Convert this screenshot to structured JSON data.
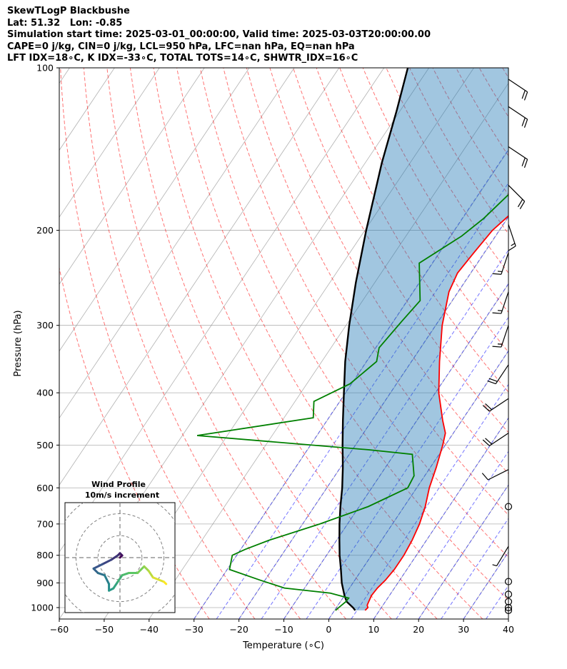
{
  "header": {
    "lines": [
      "SkewTLogP Blackbushe",
      "Lat: 51.32   Lon: -0.85",
      "Simulation start time: 2025-03-01_00:00:00, Valid time: 2025-03-03T20:00:00.00",
      "CAPE=0 j/kg, CIN=0 j/kg, LCL=950 hPa, LFC=nan hPa, EQ=nan hPa",
      "LFT IDX=18∘C, K IDX=-33∘C, TOTAL TOTS=14∘C, SHWTR_IDX=16∘C"
    ]
  },
  "chart_data": {
    "type": "skewt",
    "title": "SkewTLogP Blackbushe",
    "xlabel": "Temperature (∘C)",
    "ylabel": "Pressure (hPa)",
    "xlim": [
      -60,
      40
    ],
    "ylim": [
      1050,
      100
    ],
    "x_ticks": [
      "−60",
      "−50",
      "−40",
      "−30",
      "−20",
      "−10",
      "0",
      "10",
      "20",
      "30",
      "40"
    ],
    "x_tick_values": [
      -60,
      -50,
      -40,
      -30,
      -20,
      -10,
      0,
      10,
      20,
      30,
      40
    ],
    "y_ticks": [
      "1000",
      "900",
      "800",
      "700",
      "600",
      "500",
      "400",
      "300",
      "200",
      "100"
    ],
    "y_tick_values": [
      1000,
      900,
      800,
      700,
      600,
      500,
      400,
      300,
      200,
      100
    ],
    "grid": true,
    "colors": {
      "temperature": "#ff0000",
      "dewpoint": "#008000",
      "parcel": "#000000",
      "cape_fill": "#1f77b4",
      "dry_adiabats": "#ff0000",
      "moist_adiabats": "#0000ff",
      "mixing_ratio": "#808080",
      "isotherms": "#808080"
    },
    "temperature": [
      {
        "p": 1012,
        "x": 6.8
      },
      {
        "p": 1000,
        "x": 7.0
      },
      {
        "p": 990,
        "x": 6.5
      },
      {
        "p": 975,
        "x": 6.3
      },
      {
        "p": 950,
        "x": 6.0
      },
      {
        "p": 920,
        "x": 6.2
      },
      {
        "p": 890,
        "x": 6.8
      },
      {
        "p": 850,
        "x": 7.2
      },
      {
        "p": 800,
        "x": 7.2
      },
      {
        "p": 750,
        "x": 6.8
      },
      {
        "p": 700,
        "x": 6.0
      },
      {
        "p": 650,
        "x": 4.7
      },
      {
        "p": 600,
        "x": 2.8
      },
      {
        "p": 550,
        "x": 1.3
      },
      {
        "p": 500,
        "x": -0.6
      },
      {
        "p": 475,
        "x": -1.8
      },
      {
        "p": 450,
        "x": -4.3
      },
      {
        "p": 400,
        "x": -9.3
      },
      {
        "p": 350,
        "x": -13.8
      },
      {
        "p": 300,
        "x": -18.6
      },
      {
        "p": 260,
        "x": -22.1
      },
      {
        "p": 240,
        "x": -23.0
      },
      {
        "p": 220,
        "x": -22.4
      },
      {
        "p": 200,
        "x": -21.6
      },
      {
        "p": 185,
        "x": -19.8
      },
      {
        "p": 175,
        "x": -17.4
      },
      {
        "p": 160,
        "x": -15.7
      },
      {
        "p": 145,
        "x": -16.2
      },
      {
        "p": 135,
        "x": -15.4
      },
      {
        "p": 125,
        "x": -11.8
      },
      {
        "p": 115,
        "x": -8.4
      },
      {
        "p": 108,
        "x": -7.9
      },
      {
        "p": 100,
        "x": -6.5
      }
    ],
    "dewpoint": [
      {
        "p": 1012,
        "x": 0.2
      },
      {
        "p": 1000,
        "x": 0.5
      },
      {
        "p": 975,
        "x": 1.2
      },
      {
        "p": 960,
        "x": 1.3
      },
      {
        "p": 940,
        "x": -3.5
      },
      {
        "p": 920,
        "x": -14.5
      },
      {
        "p": 890,
        "x": -21.0
      },
      {
        "p": 850,
        "x": -29.5
      },
      {
        "p": 800,
        "x": -31.0
      },
      {
        "p": 780,
        "x": -29.0
      },
      {
        "p": 750,
        "x": -25.0
      },
      {
        "p": 700,
        "x": -16.2
      },
      {
        "p": 650,
        "x": -8.0
      },
      {
        "p": 600,
        "x": -2.0
      },
      {
        "p": 570,
        "x": -2.4
      },
      {
        "p": 520,
        "x": -6.0
      },
      {
        "p": 510,
        "x": -16.5
      },
      {
        "p": 480,
        "x": -56.7
      },
      {
        "p": 445,
        "x": -33.5
      },
      {
        "p": 415,
        "x": -35.8
      },
      {
        "p": 385,
        "x": -30.4
      },
      {
        "p": 350,
        "x": -27.8
      },
      {
        "p": 330,
        "x": -29.3
      },
      {
        "p": 295,
        "x": -28.2
      },
      {
        "p": 270,
        "x": -27.2
      },
      {
        "p": 230,
        "x": -33.0
      },
      {
        "p": 205,
        "x": -27.6
      },
      {
        "p": 190,
        "x": -25.3
      },
      {
        "p": 160,
        "x": -22.0
      },
      {
        "p": 145,
        "x": -22.6
      },
      {
        "p": 135,
        "x": -22.9
      },
      {
        "p": 125,
        "x": -24.5
      },
      {
        "p": 115,
        "x": -22.3
      },
      {
        "p": 100,
        "x": -20.8
      }
    ],
    "parcel": [
      {
        "p": 1012,
        "x": 4.6
      },
      {
        "p": 1000,
        "x": 3.7
      },
      {
        "p": 975,
        "x": 1.4
      },
      {
        "p": 950,
        "x": 0.0
      },
      {
        "p": 900,
        "x": -2.5
      },
      {
        "p": 850,
        "x": -4.7
      },
      {
        "p": 800,
        "x": -7.1
      },
      {
        "p": 750,
        "x": -9.4
      },
      {
        "p": 700,
        "x": -11.8
      },
      {
        "p": 650,
        "x": -14.2
      },
      {
        "p": 600,
        "x": -16.6
      },
      {
        "p": 550,
        "x": -19.5
      },
      {
        "p": 500,
        "x": -22.9
      },
      {
        "p": 450,
        "x": -26.5
      },
      {
        "p": 400,
        "x": -30.4
      },
      {
        "p": 350,
        "x": -34.8
      },
      {
        "p": 300,
        "x": -39.3
      },
      {
        "p": 250,
        "x": -44.2
      },
      {
        "p": 200,
        "x": -49.7
      },
      {
        "p": 150,
        "x": -56.3
      },
      {
        "p": 120,
        "x": -60.8
      },
      {
        "p": 100,
        "x": -64.7
      }
    ],
    "wind_barbs": [
      {
        "p": 1012,
        "u": 0,
        "v": 0
      },
      {
        "p": 1000,
        "u": 0,
        "v": 0
      },
      {
        "p": 975,
        "u": 0,
        "v": 0
      },
      {
        "p": 945,
        "u": 0,
        "v": 0
      },
      {
        "p": 895,
        "u": 0,
        "v": 0
      },
      {
        "p": 770,
        "u": 3,
        "v": 5
      },
      {
        "p": 650,
        "u": 0,
        "v": 0
      },
      {
        "p": 555,
        "u": 10,
        "v": 5
      },
      {
        "p": 475,
        "u": 15,
        "v": 10
      },
      {
        "p": 410,
        "u": 15,
        "v": 10
      },
      {
        "p": 355,
        "u": 10,
        "v": 15
      },
      {
        "p": 300,
        "u": 5,
        "v": 15
      },
      {
        "p": 260,
        "u": 5,
        "v": 15
      },
      {
        "p": 220,
        "u": 5,
        "v": 15
      },
      {
        "p": 195,
        "u": -5,
        "v": 15
      },
      {
        "p": 165,
        "u": -15,
        "v": 15
      },
      {
        "p": 140,
        "u": -15,
        "v": 10
      },
      {
        "p": 118,
        "u": -15,
        "v": 10
      },
      {
        "p": 105,
        "u": -15,
        "v": 10
      }
    ],
    "hodograph": {
      "title": "Wind Profile",
      "subtitle": "10m/s increment",
      "xlim": [
        -25,
        25
      ],
      "ylim": [
        -25,
        25
      ],
      "rings": [
        10,
        20,
        30
      ],
      "points": [
        {
          "u": 0,
          "v": 0
        },
        {
          "u": 1,
          "v": 1
        },
        {
          "u": 0,
          "v": 2
        },
        {
          "u": -1,
          "v": 1
        },
        {
          "u": -4,
          "v": -1
        },
        {
          "u": -8,
          "v": -3
        },
        {
          "u": -12,
          "v": -5
        },
        {
          "u": -10,
          "v": -7
        },
        {
          "u": -7,
          "v": -8
        },
        {
          "u": -5,
          "v": -12
        },
        {
          "u": -5,
          "v": -15
        },
        {
          "u": -3,
          "v": -14
        },
        {
          "u": -1,
          "v": -11
        },
        {
          "u": 1,
          "v": -8
        },
        {
          "u": 4,
          "v": -7
        },
        {
          "u": 8,
          "v": -7
        },
        {
          "u": 11,
          "v": -4
        },
        {
          "u": 13,
          "v": -6
        },
        {
          "u": 15,
          "v": -9
        },
        {
          "u": 20,
          "v": -11
        },
        {
          "u": 21,
          "v": -12
        }
      ]
    }
  }
}
